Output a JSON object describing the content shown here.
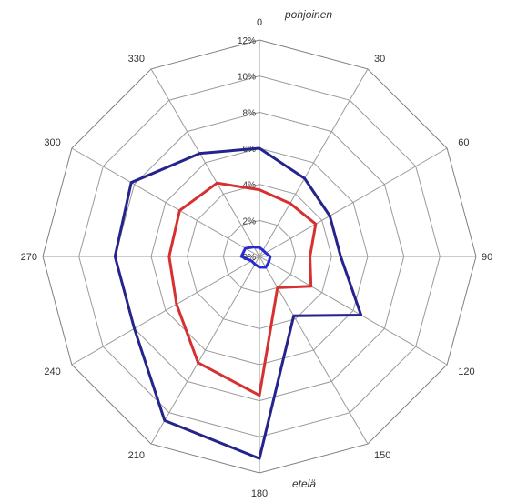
{
  "chart_data": {
    "type": "radar",
    "title": "",
    "directions": [
      "0",
      "30",
      "60",
      "90",
      "120",
      "150",
      "180",
      "210",
      "240",
      "270",
      "300",
      "330"
    ],
    "r_ticks": [
      "0%",
      "2%",
      "4%",
      "6%",
      "8%",
      "10%",
      "12%"
    ],
    "r_max": 12,
    "cardinal_labels": {
      "north": "pohjoinen",
      "south": "etelä"
    },
    "grid": true,
    "series": [
      {
        "color": "#24248c",
        "values": [
          6.0,
          5.0,
          4.5,
          4.5,
          6.5,
          3.8,
          11.2,
          10.5,
          8.0,
          8.0,
          8.2,
          6.6
        ]
      },
      {
        "color": "#d63030",
        "values": [
          3.7,
          3.4,
          3.6,
          2.8,
          3.3,
          2.0,
          7.7,
          6.8,
          5.3,
          5.0,
          5.1,
          4.7
        ]
      },
      {
        "color": "#2a2ad0",
        "values": [
          0.5,
          0.4,
          0.4,
          0.6,
          0.6,
          0.7,
          0.6,
          0.5,
          0.5,
          1.0,
          0.9,
          0.6
        ]
      }
    ]
  }
}
